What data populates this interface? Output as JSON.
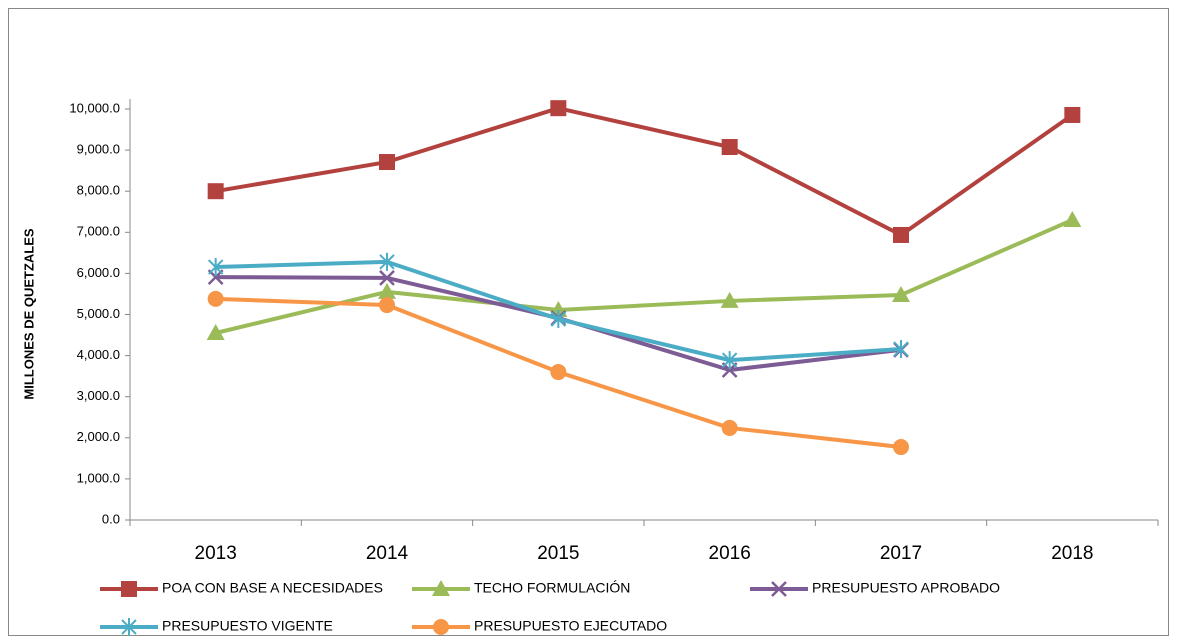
{
  "chart_data": {
    "type": "line",
    "y_label": "MILLONES DE QUETZALES",
    "categories": [
      "2013",
      "2014",
      "2015",
      "2016",
      "2017",
      "2018"
    ],
    "series": [
      {
        "name": "POA CON BASE A NECESIDADES",
        "color": "#b3423f",
        "marker": "square",
        "values": [
          8000,
          8710,
          10020,
          9075,
          6935,
          9855
        ]
      },
      {
        "name": "TECHO FORMULACIÓN",
        "color": "#9bbb59",
        "marker": "triangle",
        "values": [
          4550,
          5550,
          5110,
          5330,
          5475,
          7300
        ]
      },
      {
        "name": "PRESUPUESTO APROBADO",
        "color": "#7d5b94",
        "marker": "x",
        "values": [
          5910,
          5890,
          4915,
          3650,
          4140,
          null
        ]
      },
      {
        "name": "PRESUPUESTO VIGENTE",
        "color": "#4bacc6",
        "marker": "star",
        "values": [
          6155,
          6280,
          4890,
          3890,
          4160,
          null
        ]
      },
      {
        "name": "PRESUPUESTO EJECUTADO",
        "color": "#f79646",
        "marker": "circle",
        "values": [
          5380,
          5230,
          3600,
          2240,
          1775,
          null
        ]
      }
    ],
    "ylim": [
      0,
      10000
    ],
    "yticks": [
      {
        "value": 0,
        "label": "0.0"
      },
      {
        "value": 1000,
        "label": "1,000.0"
      },
      {
        "value": 2000,
        "label": "2,000.0"
      },
      {
        "value": 3000,
        "label": "3,000.0"
      },
      {
        "value": 4000,
        "label": "4,000.0"
      },
      {
        "value": 5000,
        "label": "5,000.0"
      },
      {
        "value": 6000,
        "label": "6,000.0"
      },
      {
        "value": 7000,
        "label": "7,000.0"
      },
      {
        "value": 8000,
        "label": "8,000.0"
      },
      {
        "value": 9000,
        "label": "9,000.0"
      },
      {
        "value": 10000,
        "label": "10,000.0"
      }
    ],
    "grid": false
  }
}
